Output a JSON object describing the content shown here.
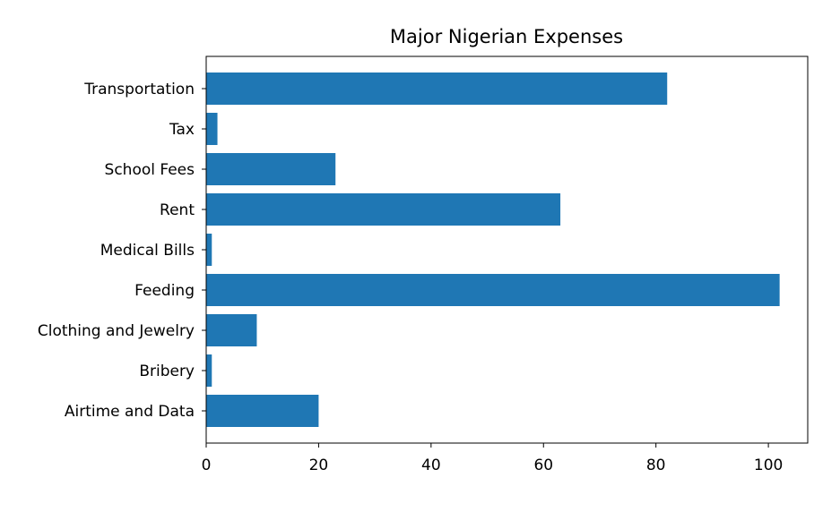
{
  "chart_data": {
    "type": "bar",
    "orientation": "horizontal",
    "title": "Major Nigerian Expenses",
    "xlabel": "",
    "ylabel": "",
    "categories": [
      "Airtime and Data",
      "Bribery",
      "Clothing and Jewelry",
      "Feeding",
      "Medical Bills",
      "Rent",
      "School Fees",
      "Tax",
      "Transportation"
    ],
    "values": [
      20,
      1,
      9,
      102,
      1,
      63,
      23,
      2,
      82
    ],
    "xlim": [
      0,
      107
    ],
    "xticks": [
      0,
      20,
      40,
      60,
      80,
      100
    ],
    "grid": false,
    "bar_color": "#1f77b4"
  }
}
